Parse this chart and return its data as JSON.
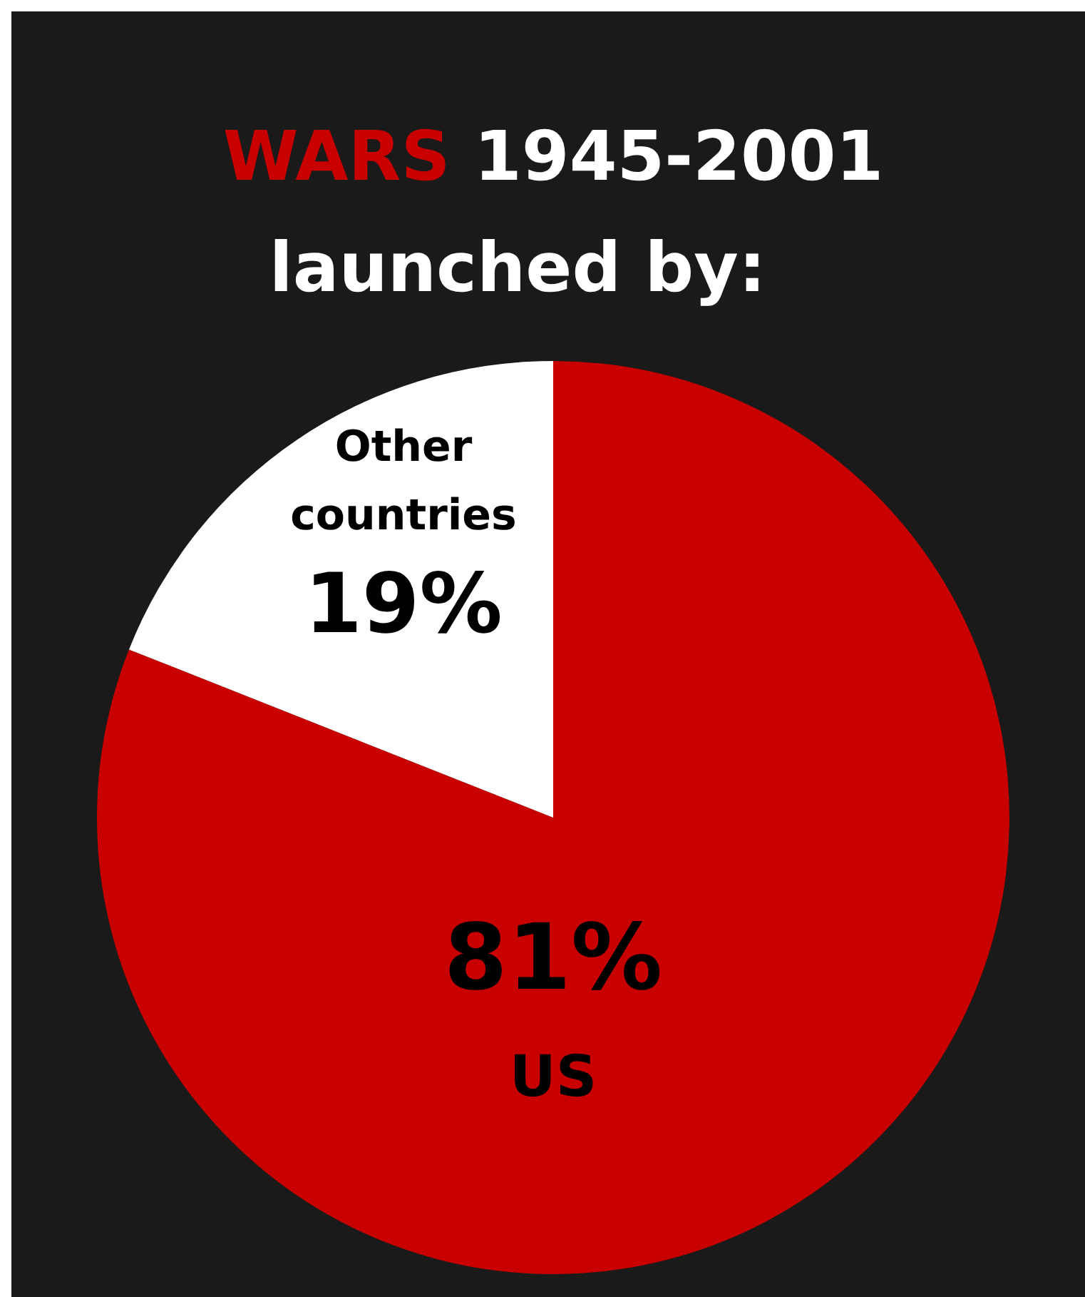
{
  "chart_data": {
    "type": "pie",
    "title": "WARS 1945-2001",
    "subtitle": "launched by:",
    "categories": [
      "US",
      "Other countries"
    ],
    "values": [
      81,
      19
    ],
    "colors": [
      "#c80000",
      "#ffffff"
    ],
    "value_labels": [
      "81%",
      "19%"
    ]
  }
}
